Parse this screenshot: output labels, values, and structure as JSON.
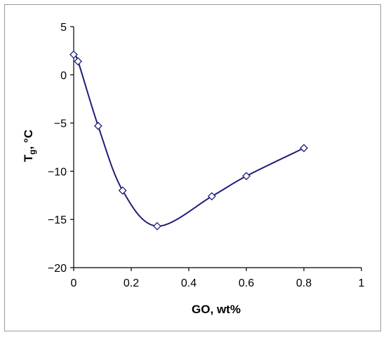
{
  "chart_data": {
    "type": "line",
    "xlabel": "GO, wt%",
    "ylabel": {
      "main": "T",
      "sub": "g",
      "suffix": ", °C"
    },
    "xlim": [
      0,
      1
    ],
    "ylim": [
      -20,
      5
    ],
    "xticks": [
      0,
      0.2,
      0.4,
      0.6,
      0.8,
      1
    ],
    "xtick_labels": [
      "0",
      "0.2",
      "0.4",
      "0.6",
      "0.8",
      "1"
    ],
    "yticks": [
      5,
      0,
      -5,
      -10,
      -15,
      -20
    ],
    "ytick_labels": [
      "5",
      "0",
      "−5",
      "−10",
      "−15",
      "−20"
    ],
    "grid": false,
    "legend": "none",
    "series": [
      {
        "marker": "diamond-open",
        "smoothed": true,
        "x": [
          0.0,
          0.015,
          0.085,
          0.17,
          0.29,
          0.48,
          0.6,
          0.8
        ],
        "y": [
          2.1,
          1.4,
          -5.3,
          -12.0,
          -15.7,
          -12.6,
          -10.5,
          -7.6
        ]
      }
    ],
    "colors": {
      "line": "#1f1f7a",
      "marker_stroke": "#1f1f7a",
      "marker_fill": "#ffffff",
      "axis": "#000000"
    }
  }
}
